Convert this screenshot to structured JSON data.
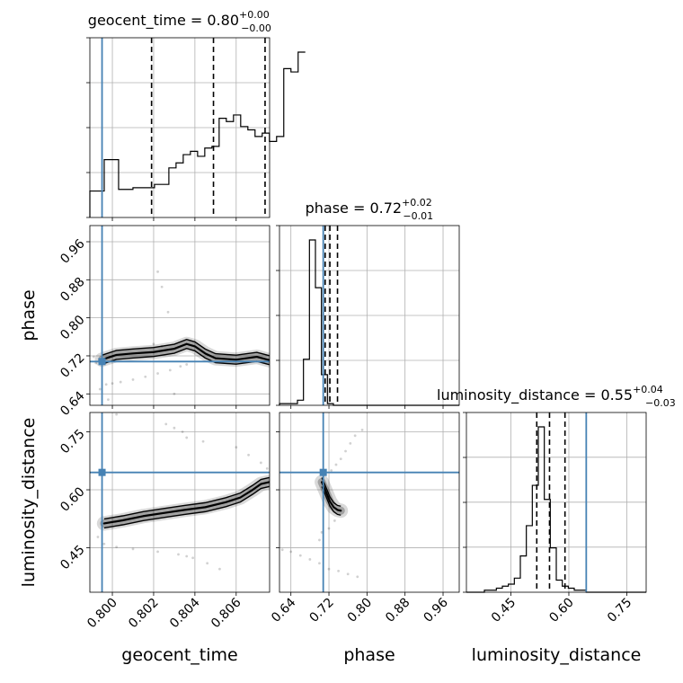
{
  "chart_data": {
    "type": "corner",
    "truth_color": "#4682b4",
    "grid": true,
    "parameters": [
      {
        "name": "geocent_time",
        "range": [
          0.79891,
          0.80762
        ],
        "ticks": [
          0.8,
          0.802,
          0.804,
          0.806
        ],
        "tick_labels": [
          "0.800",
          "0.802",
          "0.804",
          "0.806"
        ],
        "truth": 0.7995,
        "quantiles": [
          0.8019,
          0.8049,
          0.8074
        ],
        "title": {
          "prefix": "geocent_time = ",
          "value": "0.80",
          "plus": "+0.00",
          "minus": "−0.00"
        },
        "histogram": {
          "edges_start": 0.79891,
          "edges_step": 0.000348,
          "counts": [
            0.16,
            0.16,
            0.35,
            0.35,
            0.17,
            0.17,
            0.18,
            0.18,
            0.18,
            0.2,
            0.2,
            0.3,
            0.33,
            0.38,
            0.4,
            0.37,
            0.42,
            0.43,
            0.6,
            0.58,
            0.62,
            0.55,
            0.53,
            0.49,
            0.51,
            0.46,
            0.49,
            0.9,
            0.88,
            1.0
          ]
        }
      },
      {
        "name": "phase",
        "range": [
          0.616,
          0.994
        ],
        "ticks": [
          0.64,
          0.72,
          0.8,
          0.88,
          0.96
        ],
        "tick_labels": [
          "0.64",
          "0.72",
          "0.80",
          "0.88",
          "0.96"
        ],
        "truth": 0.708,
        "quantiles": [
          0.712,
          0.722,
          0.738
        ],
        "title": {
          "prefix": "phase = ",
          "value": "0.72",
          "plus": "+0.02",
          "minus": "−0.01"
        },
        "histogram": {
          "edges_start": 0.616,
          "edges_step": 0.0126,
          "counts": [
            0.01,
            0.01,
            0.01,
            0.03,
            0.27,
            0.97,
            0.69,
            0.18,
            0.01,
            0.0,
            0.0,
            0.0,
            0.0,
            0.0,
            0.0,
            0.0,
            0.0,
            0.0,
            0.0,
            0.0,
            0.0,
            0.0,
            0.0,
            0.0,
            0.0,
            0.0,
            0.0,
            0.0,
            0.0,
            0.0
          ]
        }
      },
      {
        "name": "luminosity_distance",
        "range": [
          0.335,
          0.8
        ],
        "ticks": [
          0.45,
          0.6,
          0.75
        ],
        "tick_labels": [
          "0.45",
          "0.60",
          "0.75"
        ],
        "truth": 0.645,
        "quantiles": [
          0.517,
          0.55,
          0.59
        ],
        "title": {
          "prefix": "luminosity_distance = ",
          "value": "0.55",
          "plus": "+0.04",
          "minus": "−0.03"
        },
        "histogram": {
          "edges_start": 0.335,
          "edges_step": 0.0155,
          "counts": [
            0.0,
            0.0,
            0.0,
            0.01,
            0.01,
            0.02,
            0.03,
            0.04,
            0.07,
            0.18,
            0.33,
            0.53,
            0.82,
            0.46,
            0.22,
            0.06,
            0.03,
            0.02,
            0.01,
            0.01,
            0.0,
            0.0,
            0.0,
            0.0,
            0.0,
            0.0,
            0.0,
            0.0,
            0.0,
            0.0
          ]
        }
      }
    ],
    "pair_panels": [
      {
        "x": "geocent_time",
        "y": "phase",
        "ridge_points": [
          [
            0.7995,
            0.712
          ],
          [
            0.8002,
            0.722
          ],
          [
            0.801,
            0.725
          ],
          [
            0.802,
            0.728
          ],
          [
            0.803,
            0.735
          ],
          [
            0.8036,
            0.745
          ],
          [
            0.804,
            0.74
          ],
          [
            0.8045,
            0.725
          ],
          [
            0.805,
            0.715
          ],
          [
            0.806,
            0.712
          ],
          [
            0.807,
            0.718
          ],
          [
            0.8076,
            0.711
          ]
        ],
        "scatter_points": [
          [
            0.7994,
            0.65
          ],
          [
            0.7997,
            0.66
          ],
          [
            0.8,
            0.662
          ],
          [
            0.8004,
            0.665
          ],
          [
            0.801,
            0.67
          ],
          [
            0.8016,
            0.676
          ],
          [
            0.8022,
            0.683
          ],
          [
            0.8028,
            0.69
          ],
          [
            0.8033,
            0.698
          ],
          [
            0.8036,
            0.702
          ],
          [
            0.803,
            0.64
          ],
          [
            0.8033,
            0.61
          ],
          [
            0.8027,
            0.812
          ],
          [
            0.8024,
            0.865
          ],
          [
            0.8022,
            0.897
          ],
          [
            0.8024,
            0.74
          ],
          [
            0.802,
            0.745
          ],
          [
            0.7998,
            0.628
          ],
          [
            0.7992,
            0.705
          ],
          [
            0.7991,
            0.718
          ]
        ]
      },
      {
        "x": "geocent_time",
        "y": "luminosity_distance",
        "ridge_points": [
          [
            0.7996,
            0.513
          ],
          [
            0.8005,
            0.521
          ],
          [
            0.8015,
            0.532
          ],
          [
            0.8025,
            0.54
          ],
          [
            0.8035,
            0.548
          ],
          [
            0.8045,
            0.555
          ],
          [
            0.8055,
            0.568
          ],
          [
            0.8062,
            0.58
          ],
          [
            0.8068,
            0.6
          ],
          [
            0.8072,
            0.615
          ],
          [
            0.8076,
            0.62
          ]
        ],
        "scatter_points": [
          [
            0.7993,
            0.478
          ],
          [
            0.7996,
            0.46
          ],
          [
            0.8002,
            0.452
          ],
          [
            0.801,
            0.447
          ],
          [
            0.8022,
            0.44
          ],
          [
            0.8032,
            0.433
          ],
          [
            0.8036,
            0.428
          ],
          [
            0.8039,
            0.424
          ],
          [
            0.8046,
            0.41
          ],
          [
            0.8052,
            0.395
          ],
          [
            0.806,
            0.71
          ],
          [
            0.8066,
            0.69
          ],
          [
            0.8072,
            0.67
          ],
          [
            0.8075,
            0.655
          ],
          [
            0.8034,
            0.75
          ],
          [
            0.8036,
            0.735
          ],
          [
            0.8044,
            0.725
          ],
          [
            0.8026,
            0.77
          ],
          [
            0.803,
            0.76
          ],
          [
            0.8002,
            0.795
          ]
        ]
      },
      {
        "x": "phase",
        "y": "luminosity_distance",
        "ridge_points": [
          [
            0.705,
            0.62
          ],
          [
            0.712,
            0.6
          ],
          [
            0.718,
            0.582
          ],
          [
            0.722,
            0.57
          ],
          [
            0.73,
            0.555
          ],
          [
            0.738,
            0.548
          ],
          [
            0.745,
            0.546
          ]
        ],
        "scatter_points": [
          [
            0.622,
            0.445
          ],
          [
            0.64,
            0.44
          ],
          [
            0.66,
            0.43
          ],
          [
            0.68,
            0.42
          ],
          [
            0.7,
            0.41
          ],
          [
            0.72,
            0.395
          ],
          [
            0.74,
            0.39
          ],
          [
            0.76,
            0.382
          ],
          [
            0.78,
            0.375
          ],
          [
            0.7,
            0.47
          ],
          [
            0.705,
            0.49
          ],
          [
            0.725,
            0.65
          ],
          [
            0.735,
            0.665
          ],
          [
            0.745,
            0.68
          ],
          [
            0.755,
            0.7
          ],
          [
            0.765,
            0.72
          ],
          [
            0.775,
            0.74
          ],
          [
            0.79,
            0.755
          ],
          [
            0.72,
            0.5
          ],
          [
            0.732,
            0.52
          ]
        ]
      }
    ]
  }
}
